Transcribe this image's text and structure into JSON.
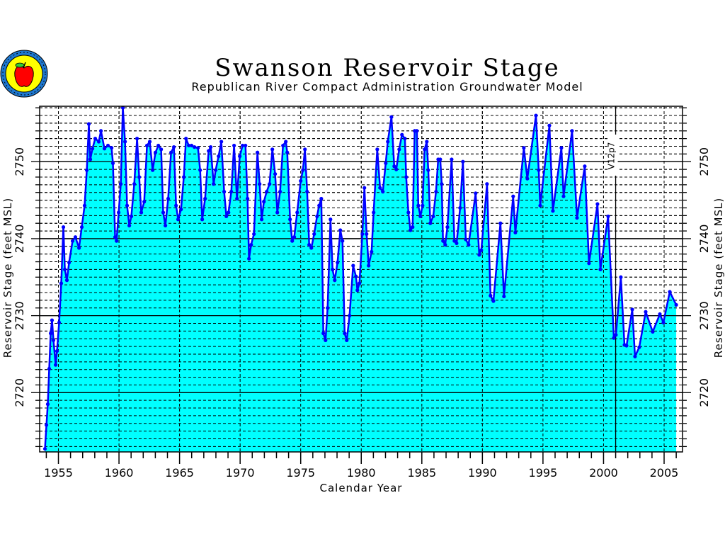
{
  "logo": {
    "name": "agency-seal-logo",
    "text": "Republican River Compact"
  },
  "chart_data": {
    "type": "area",
    "title": "Swanson Reservoir Stage",
    "subtitle": "Republican River Compact Administration Groundwater Model",
    "xlabel": "Calendar Year",
    "ylabel": "Reservoir Stage (feet MSL)",
    "ylabel_right": "Reservoir Stage (feet MSL)",
    "xlim": [
      1953.45,
      2006.52
    ],
    "ylim": [
      2712.3,
      2757.2
    ],
    "xticks": [
      "1955",
      "1960",
      "1965",
      "1970",
      "1975",
      "1980",
      "1985",
      "1990",
      "1995",
      "2000",
      "2005"
    ],
    "yticks": [
      "2720",
      "2730",
      "2740",
      "2750"
    ],
    "grid": true,
    "marker_line": {
      "x": 2001,
      "label": "V12p7"
    },
    "colors": {
      "fill": "#00ffff",
      "line": "#0000ff",
      "grid": "#000000"
    },
    "series": [
      {
        "name": "Reservoir Stage",
        "points": [
          [
            1953.89,
            2712.7
          ],
          [
            1954.01,
            2715.8
          ],
          [
            1954.12,
            2718.5
          ],
          [
            1954.24,
            2723.1
          ],
          [
            1954.36,
            2727.7
          ],
          [
            1954.47,
            2729.4
          ],
          [
            1954.59,
            2726.8
          ],
          [
            1954.77,
            2723.6
          ],
          [
            1954.88,
            2725.4
          ],
          [
            1955.06,
            2729.1
          ],
          [
            1955.23,
            2734.2
          ],
          [
            1955.41,
            2741.5
          ],
          [
            1955.53,
            2736.0
          ],
          [
            1955.7,
            2734.6
          ],
          [
            1955.88,
            2736.9
          ],
          [
            1956.17,
            2739.7
          ],
          [
            1956.4,
            2740.2
          ],
          [
            1956.7,
            2738.8
          ],
          [
            1956.93,
            2741.5
          ],
          [
            1957.16,
            2744.3
          ],
          [
            1957.34,
            2748.9
          ],
          [
            1957.51,
            2754.9
          ],
          [
            1957.63,
            2750.3
          ],
          [
            1957.81,
            2751.7
          ],
          [
            1958.04,
            2753.0
          ],
          [
            1958.33,
            2752.6
          ],
          [
            1958.51,
            2754.0
          ],
          [
            1958.8,
            2751.7
          ],
          [
            1959.09,
            2752.1
          ],
          [
            1959.39,
            2751.8
          ],
          [
            1959.5,
            2749.8
          ],
          [
            1959.68,
            2740.2
          ],
          [
            1959.8,
            2739.7
          ],
          [
            1959.97,
            2743.4
          ],
          [
            1960.15,
            2747.1
          ],
          [
            1960.32,
            2757.0
          ],
          [
            1960.5,
            2752.6
          ],
          [
            1960.67,
            2744.3
          ],
          [
            1960.85,
            2741.7
          ],
          [
            1961.02,
            2742.9
          ],
          [
            1961.26,
            2747.1
          ],
          [
            1961.49,
            2753.0
          ],
          [
            1961.67,
            2748.0
          ],
          [
            1961.84,
            2743.4
          ],
          [
            1962.08,
            2744.8
          ],
          [
            1962.31,
            2752.1
          ],
          [
            1962.54,
            2752.6
          ],
          [
            1962.78,
            2748.9
          ],
          [
            1963.01,
            2751.2
          ],
          [
            1963.25,
            2752.1
          ],
          [
            1963.48,
            2751.6
          ],
          [
            1963.65,
            2743.4
          ],
          [
            1963.83,
            2741.7
          ],
          [
            1964.06,
            2745.2
          ],
          [
            1964.3,
            2751.2
          ],
          [
            1964.53,
            2751.9
          ],
          [
            1964.71,
            2744.3
          ],
          [
            1964.88,
            2742.5
          ],
          [
            1965.12,
            2743.8
          ],
          [
            1965.35,
            2748.0
          ],
          [
            1965.53,
            2753.0
          ],
          [
            1965.76,
            2752.1
          ],
          [
            1965.99,
            2752.1
          ],
          [
            1966.23,
            2751.9
          ],
          [
            1966.52,
            2751.8
          ],
          [
            1966.7,
            2748.9
          ],
          [
            1966.87,
            2742.5
          ],
          [
            1967.11,
            2745.2
          ],
          [
            1967.4,
            2751.4
          ],
          [
            1967.57,
            2751.9
          ],
          [
            1967.81,
            2747.1
          ],
          [
            1967.98,
            2748.9
          ],
          [
            1968.22,
            2750.7
          ],
          [
            1968.45,
            2752.6
          ],
          [
            1968.68,
            2746.1
          ],
          [
            1968.86,
            2742.9
          ],
          [
            1969.04,
            2743.4
          ],
          [
            1969.27,
            2746.1
          ],
          [
            1969.5,
            2752.1
          ],
          [
            1969.74,
            2745.2
          ],
          [
            1969.97,
            2750.7
          ],
          [
            1970.2,
            2752.1
          ],
          [
            1970.44,
            2752.1
          ],
          [
            1970.61,
            2745.2
          ],
          [
            1970.73,
            2737.4
          ],
          [
            1970.91,
            2739.2
          ],
          [
            1971.14,
            2740.6
          ],
          [
            1971.43,
            2751.2
          ],
          [
            1971.61,
            2747.1
          ],
          [
            1971.78,
            2742.5
          ],
          [
            1971.96,
            2744.8
          ],
          [
            1972.19,
            2746.1
          ],
          [
            1972.43,
            2747.1
          ],
          [
            1972.66,
            2751.6
          ],
          [
            1972.89,
            2748.4
          ],
          [
            1973.07,
            2743.4
          ],
          [
            1973.3,
            2746.1
          ],
          [
            1973.54,
            2752.1
          ],
          [
            1973.77,
            2752.6
          ],
          [
            1973.89,
            2751.2
          ],
          [
            1974.12,
            2742.5
          ],
          [
            1974.3,
            2739.7
          ],
          [
            1974.47,
            2740.2
          ],
          [
            1974.71,
            2743.4
          ],
          [
            1975.0,
            2747.5
          ],
          [
            1975.18,
            2748.9
          ],
          [
            1975.35,
            2751.6
          ],
          [
            1975.53,
            2746.1
          ],
          [
            1975.7,
            2739.2
          ],
          [
            1975.88,
            2738.8
          ],
          [
            1976.11,
            2740.6
          ],
          [
            1976.35,
            2742.9
          ],
          [
            1976.52,
            2744.3
          ],
          [
            1976.7,
            2745.2
          ],
          [
            1976.87,
            2727.7
          ],
          [
            1977.05,
            2726.8
          ],
          [
            1977.22,
            2731.0
          ],
          [
            1977.46,
            2742.5
          ],
          [
            1977.63,
            2736.0
          ],
          [
            1977.81,
            2734.6
          ],
          [
            1978.04,
            2736.9
          ],
          [
            1978.27,
            2741.1
          ],
          [
            1978.45,
            2739.7
          ],
          [
            1978.63,
            2727.7
          ],
          [
            1978.8,
            2726.8
          ],
          [
            1979.03,
            2730.0
          ],
          [
            1979.33,
            2736.5
          ],
          [
            1979.56,
            2735.1
          ],
          [
            1979.68,
            2733.3
          ],
          [
            1979.85,
            2734.2
          ],
          [
            1980.09,
            2740.6
          ],
          [
            1980.26,
            2746.6
          ],
          [
            1980.44,
            2740.6
          ],
          [
            1980.61,
            2736.5
          ],
          [
            1980.85,
            2738.3
          ],
          [
            1981.02,
            2743.4
          ],
          [
            1981.32,
            2751.6
          ],
          [
            1981.55,
            2746.6
          ],
          [
            1981.78,
            2746.1
          ],
          [
            1982.02,
            2749.8
          ],
          [
            1982.19,
            2752.6
          ],
          [
            1982.49,
            2755.8
          ],
          [
            1982.72,
            2749.4
          ],
          [
            1982.89,
            2749.0
          ],
          [
            1983.13,
            2751.6
          ],
          [
            1983.36,
            2753.5
          ],
          [
            1983.6,
            2753.0
          ],
          [
            1983.71,
            2748.0
          ],
          [
            1983.89,
            2743.4
          ],
          [
            1984.06,
            2741.1
          ],
          [
            1984.24,
            2741.5
          ],
          [
            1984.41,
            2754.0
          ],
          [
            1984.59,
            2754.0
          ],
          [
            1984.71,
            2744.3
          ],
          [
            1984.88,
            2742.9
          ],
          [
            1985.06,
            2744.3
          ],
          [
            1985.23,
            2751.6
          ],
          [
            1985.41,
            2752.6
          ],
          [
            1985.53,
            2748.9
          ],
          [
            1985.7,
            2742.0
          ],
          [
            1985.94,
            2742.9
          ],
          [
            1986.17,
            2746.1
          ],
          [
            1986.35,
            2750.3
          ],
          [
            1986.52,
            2750.3
          ],
          [
            1986.64,
            2747.1
          ],
          [
            1986.75,
            2739.7
          ],
          [
            1986.93,
            2739.2
          ],
          [
            1987.11,
            2741.5
          ],
          [
            1987.46,
            2750.3
          ],
          [
            1987.69,
            2739.7
          ],
          [
            1987.87,
            2739.4
          ],
          [
            1988.16,
            2744.0
          ],
          [
            1988.39,
            2750.0
          ],
          [
            1988.63,
            2739.9
          ],
          [
            1988.86,
            2739.2
          ],
          [
            1989.44,
            2745.9
          ],
          [
            1989.74,
            2737.9
          ],
          [
            1989.91,
            2738.5
          ],
          [
            1990.38,
            2747.1
          ],
          [
            1990.67,
            2732.6
          ],
          [
            1990.91,
            2731.9
          ],
          [
            1991.49,
            2742.0
          ],
          [
            1991.78,
            2732.5
          ],
          [
            1992.54,
            2745.5
          ],
          [
            1992.72,
            2740.8
          ],
          [
            1993.42,
            2751.8
          ],
          [
            1993.71,
            2747.8
          ],
          [
            1994.42,
            2756.0
          ],
          [
            1994.65,
            2748.9
          ],
          [
            1994.77,
            2744.3
          ],
          [
            1995.53,
            2754.7
          ],
          [
            1995.82,
            2743.6
          ],
          [
            1996.52,
            2751.8
          ],
          [
            1996.7,
            2745.5
          ],
          [
            1997.4,
            2754.0
          ],
          [
            1997.81,
            2742.7
          ],
          [
            1998.45,
            2749.4
          ],
          [
            1998.8,
            2736.8
          ],
          [
            1999.5,
            2744.5
          ],
          [
            1999.74,
            2736.0
          ],
          [
            2000.38,
            2742.9
          ],
          [
            2000.85,
            2727.1
          ],
          [
            2001.02,
            2727.5
          ],
          [
            2001.43,
            2735.0
          ],
          [
            2001.73,
            2726.2
          ],
          [
            2001.9,
            2726.1
          ],
          [
            2002.37,
            2730.8
          ],
          [
            2002.6,
            2724.7
          ],
          [
            2002.95,
            2725.9
          ],
          [
            2003.48,
            2730.5
          ],
          [
            2004.06,
            2727.9
          ],
          [
            2004.65,
            2730.2
          ],
          [
            2004.94,
            2729.1
          ],
          [
            2005.47,
            2733.1
          ],
          [
            2006.0,
            2731.4
          ]
        ]
      }
    ]
  }
}
